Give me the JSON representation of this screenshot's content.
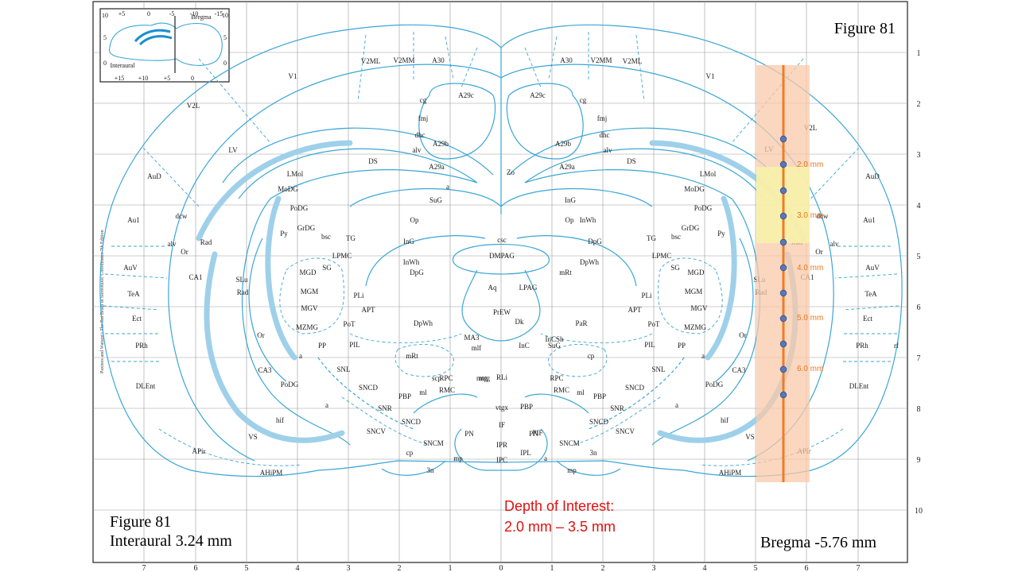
{
  "figure": {
    "title": "Figure 81",
    "bottom_left_line1": "Figure 81",
    "bottom_left_line2": "Interaural 3.24 mm",
    "bregma": "Bregma -5.76 mm"
  },
  "inset": {
    "top_ticks": [
      "+5",
      "0",
      "-5",
      "-10",
      "-15"
    ],
    "bottom_ticks": [
      "+15",
      "+10",
      "+5",
      "0"
    ],
    "left_ticks": [
      "10",
      "5",
      "0"
    ],
    "right_ticks": [
      "10",
      "5",
      "0"
    ],
    "bregma_label": "Bregma",
    "interaural_label": "Interaural"
  },
  "side_note": "Paxinos and Watson's The Rat Brain in Stereotaxic Coordinates 7th Edition",
  "annotation": {
    "line1": "Depth of Interest:",
    "line2": "2.0 mm – 3.5 mm"
  },
  "depth_markers": [
    "2.0 mm",
    "3.0 mm",
    "4.0 mm",
    "5.0 mm",
    "6.0 mm"
  ],
  "axis": {
    "bottom_ticks": [
      "7",
      "6",
      "5",
      "4",
      "3",
      "2",
      "1",
      "0",
      "1",
      "2",
      "3",
      "4",
      "5",
      "6",
      "7"
    ],
    "right_ticks": [
      "1",
      "2",
      "3",
      "4",
      "5",
      "6",
      "7",
      "8",
      "9",
      "10"
    ]
  },
  "regions": {
    "left": [
      "V1",
      "V2ML",
      "V2MM",
      "A30",
      "A29c",
      "cg",
      "fmj",
      "dhc",
      "alv",
      "A29b",
      "A29a",
      "DS",
      "LV",
      "V2L",
      "AuD",
      "Au1",
      "AuV",
      "TeA",
      "Ect",
      "PRh",
      "DLEnt",
      "APir",
      "AHiPM",
      "VS",
      "LMol",
      "MoDG",
      "PoDG",
      "GrDG",
      "Py",
      "dcw",
      "alv",
      "Or",
      "Rad",
      "CA1",
      "SLu",
      "Rad",
      "Or",
      "CA3",
      "PoDG",
      "hif",
      "a",
      "a",
      "bsc",
      "TG",
      "LPMC",
      "SG",
      "MGD",
      "MGM",
      "MGV",
      "MZMG",
      "PLi",
      "APT",
      "PoT",
      "PP",
      "PIL",
      "SNL",
      "SNCD",
      "SNR",
      "SNCV",
      "SNCD",
      "SNCM",
      "PBP",
      "ml",
      "RPC",
      "RMC",
      "scp",
      "mtg",
      "RLi",
      "PN",
      "IF",
      "IPR",
      "IPL",
      "IPC",
      "mp",
      "cp",
      "3n",
      "a",
      "SuG",
      "Op",
      "InG",
      "InWh",
      "DpG",
      "DpWh",
      "mRt",
      "PaR"
    ],
    "midline": [
      "Zo",
      "csc",
      "DMPAG",
      "Aq",
      "LPAG",
      "PrEW",
      "Dk",
      "MA3",
      "mlf",
      "InC",
      "InCSh",
      "vtgx",
      "PBP",
      "PIF"
    ],
    "right": [
      "V1",
      "V2ML",
      "V2MM",
      "A30",
      "A29c",
      "cg",
      "fmj",
      "dhc",
      "alv",
      "A29b",
      "A29a",
      "DS",
      "LV",
      "V2L",
      "AuD",
      "Au1",
      "AuV",
      "TeA",
      "Ect",
      "PRh",
      "rf",
      "DLEnt",
      "APir",
      "AHiPM",
      "VS",
      "LMol",
      "MoDG",
      "PoDG",
      "GrDG",
      "Py",
      "dcw",
      "alv",
      "Or",
      "Rad",
      "CA1",
      "SLu",
      "Rad",
      "Or",
      "CA3",
      "PoDG",
      "hif",
      "a",
      "a",
      "bsc",
      "TG",
      "LPMC",
      "SG",
      "MGD",
      "MGM",
      "MGV",
      "MZMG",
      "PLi",
      "APT",
      "PoT",
      "PP",
      "PIL",
      "SNL",
      "SNCD",
      "SNR",
      "SNCV",
      "SNCD",
      "SNCM",
      "PBP",
      "ml",
      "RPC",
      "RMC",
      "mtg",
      "PN",
      "SuG",
      "Op",
      "InG",
      "InWh",
      "DpG",
      "DpWh",
      "mRt",
      "PaR",
      "cp",
      "3n",
      "mp",
      "a"
    ]
  },
  "colors": {
    "outline": "#3aa6d6",
    "fill_layer": "#b9dcef",
    "probe_zone": "#f9c9a9",
    "target_zone": "#f6f2a8",
    "probe_line": "#ef7b26",
    "electrode": "#5b78b5",
    "annotation": "#e01010"
  }
}
